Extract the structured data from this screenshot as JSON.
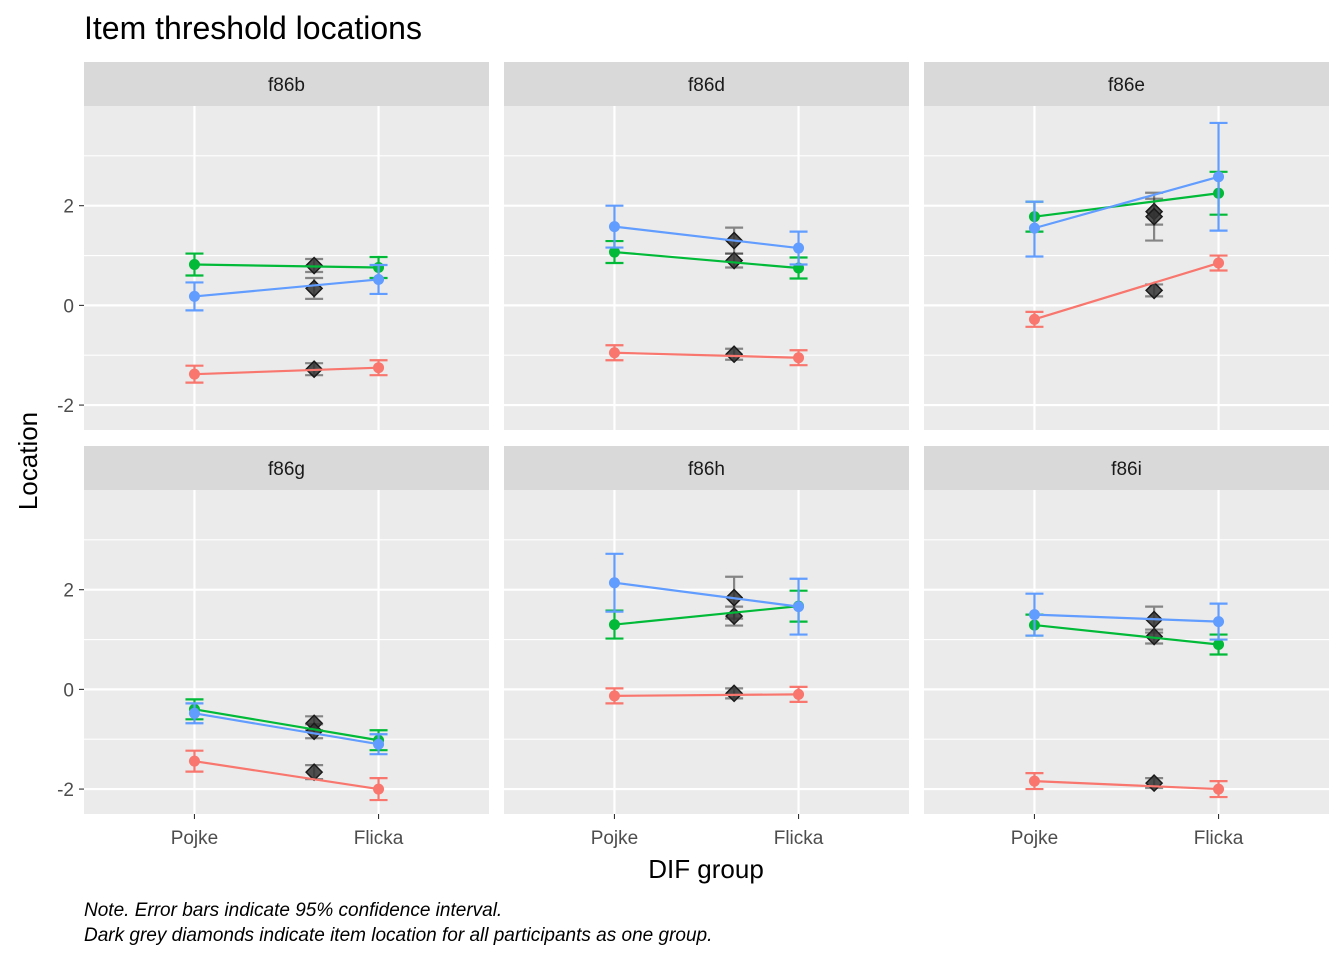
{
  "chart_data": {
    "type": "line",
    "title": "Item threshold locations",
    "xlabel": "DIF group",
    "ylabel": "Location",
    "categories": [
      "Pojke",
      "Flicka"
    ],
    "ylim": [
      -2.5,
      4.0
    ],
    "yticks": [
      -2,
      0,
      2
    ],
    "ytick_labels": [
      "-2",
      "0",
      "2"
    ],
    "grid": true,
    "legend": "none",
    "threshold_colors": [
      "#F8766D",
      "#00BA38",
      "#619CFF"
    ],
    "overall_color": "#333333",
    "caption": [
      "Note. Error bars indicate 95% confidence interval.",
      "Dark grey diamonds indicate item location for all participants as one group."
    ],
    "panels": [
      {
        "label": "f86b",
        "series": [
          {
            "values": [
              -1.38,
              -1.25
            ],
            "lower": [
              -1.55,
              -1.4
            ],
            "upper": [
              -1.21,
              -1.1
            ]
          },
          {
            "values": [
              0.82,
              0.76
            ],
            "lower": [
              0.6,
              0.55
            ],
            "upper": [
              1.04,
              0.97
            ]
          },
          {
            "values": [
              0.18,
              0.52
            ],
            "lower": [
              -0.1,
              0.23
            ],
            "upper": [
              0.46,
              0.81
            ]
          }
        ],
        "overall": [
          {
            "x": 1.65,
            "value": -1.28,
            "lower": -1.4,
            "upper": -1.16
          },
          {
            "x": 1.65,
            "value": 0.8,
            "lower": 0.67,
            "upper": 0.93
          },
          {
            "x": 1.65,
            "value": 0.34,
            "lower": 0.13,
            "upper": 0.55
          }
        ]
      },
      {
        "label": "f86d",
        "series": [
          {
            "values": [
              -0.95,
              -1.05
            ],
            "lower": [
              -1.1,
              -1.2
            ],
            "upper": [
              -0.8,
              -0.9
            ]
          },
          {
            "values": [
              1.07,
              0.75
            ],
            "lower": [
              0.85,
              0.54
            ],
            "upper": [
              1.29,
              0.96
            ]
          },
          {
            "values": [
              1.58,
              1.15
            ],
            "lower": [
              1.16,
              0.82
            ],
            "upper": [
              2.0,
              1.48
            ]
          }
        ],
        "overall": [
          {
            "x": 1.65,
            "value": -0.98,
            "lower": -1.09,
            "upper": -0.87
          },
          {
            "x": 1.65,
            "value": 0.9,
            "lower": 0.76,
            "upper": 1.04
          },
          {
            "x": 1.65,
            "value": 1.3,
            "lower": 1.04,
            "upper": 1.56
          }
        ]
      },
      {
        "label": "f86e",
        "series": [
          {
            "values": [
              -0.28,
              0.85
            ],
            "lower": [
              -0.43,
              0.7
            ],
            "upper": [
              -0.13,
              1.0
            ]
          },
          {
            "values": [
              1.78,
              2.25
            ],
            "lower": [
              1.48,
              1.82
            ],
            "upper": [
              2.08,
              2.68
            ]
          },
          {
            "values": [
              1.55,
              2.58
            ],
            "lower": [
              0.98,
              1.5
            ],
            "upper": [
              2.08,
              3.66
            ]
          }
        ],
        "overall": [
          {
            "x": 1.65,
            "value": 0.3,
            "lower": 0.18,
            "upper": 0.42
          },
          {
            "x": 1.65,
            "value": 1.88,
            "lower": 1.62,
            "upper": 2.14
          },
          {
            "x": 1.65,
            "value": 1.78,
            "lower": 1.3,
            "upper": 2.26
          }
        ]
      },
      {
        "label": "f86g",
        "series": [
          {
            "values": [
              -1.44,
              -2.0
            ],
            "lower": [
              -1.65,
              -2.22
            ],
            "upper": [
              -1.23,
              -1.78
            ]
          },
          {
            "values": [
              -0.4,
              -1.02
            ],
            "lower": [
              -0.6,
              -1.22
            ],
            "upper": [
              -0.2,
              -0.82
            ]
          },
          {
            "values": [
              -0.48,
              -1.1
            ],
            "lower": [
              -0.68,
              -1.3
            ],
            "upper": [
              -0.28,
              -0.9
            ]
          }
        ],
        "overall": [
          {
            "x": 1.65,
            "value": -1.66,
            "lower": -1.8,
            "upper": -1.52
          },
          {
            "x": 1.65,
            "value": -0.68,
            "lower": -0.82,
            "upper": -0.54
          },
          {
            "x": 1.65,
            "value": -0.84,
            "lower": -0.98,
            "upper": -0.7
          }
        ]
      },
      {
        "label": "f86h",
        "series": [
          {
            "values": [
              -0.13,
              -0.1
            ],
            "lower": [
              -0.28,
              -0.25
            ],
            "upper": [
              0.02,
              0.05
            ]
          },
          {
            "values": [
              1.3,
              1.67
            ],
            "lower": [
              1.02,
              1.36
            ],
            "upper": [
              1.58,
              1.98
            ]
          },
          {
            "values": [
              2.14,
              1.66
            ],
            "lower": [
              1.56,
              1.1
            ],
            "upper": [
              2.72,
              2.22
            ]
          }
        ],
        "overall": [
          {
            "x": 1.65,
            "value": -0.08,
            "lower": -0.18,
            "upper": 0.02
          },
          {
            "x": 1.65,
            "value": 1.47,
            "lower": 1.28,
            "upper": 1.66
          },
          {
            "x": 1.65,
            "value": 1.84,
            "lower": 1.42,
            "upper": 2.26
          }
        ]
      },
      {
        "label": "f86i",
        "series": [
          {
            "values": [
              -1.84,
              -2.0
            ],
            "lower": [
              -2.0,
              -2.16
            ],
            "upper": [
              -1.68,
              -1.84
            ]
          },
          {
            "values": [
              1.29,
              0.9
            ],
            "lower": [
              1.08,
              0.7
            ],
            "upper": [
              1.5,
              1.1
            ]
          },
          {
            "values": [
              1.5,
              1.36
            ],
            "lower": [
              1.08,
              1.0
            ],
            "upper": [
              1.92,
              1.72
            ]
          }
        ],
        "overall": [
          {
            "x": 1.65,
            "value": -1.88,
            "lower": -1.98,
            "upper": -1.78
          },
          {
            "x": 1.65,
            "value": 1.06,
            "lower": 0.92,
            "upper": 1.2
          },
          {
            "x": 1.65,
            "value": 1.4,
            "lower": 1.14,
            "upper": 1.66
          }
        ]
      }
    ]
  }
}
